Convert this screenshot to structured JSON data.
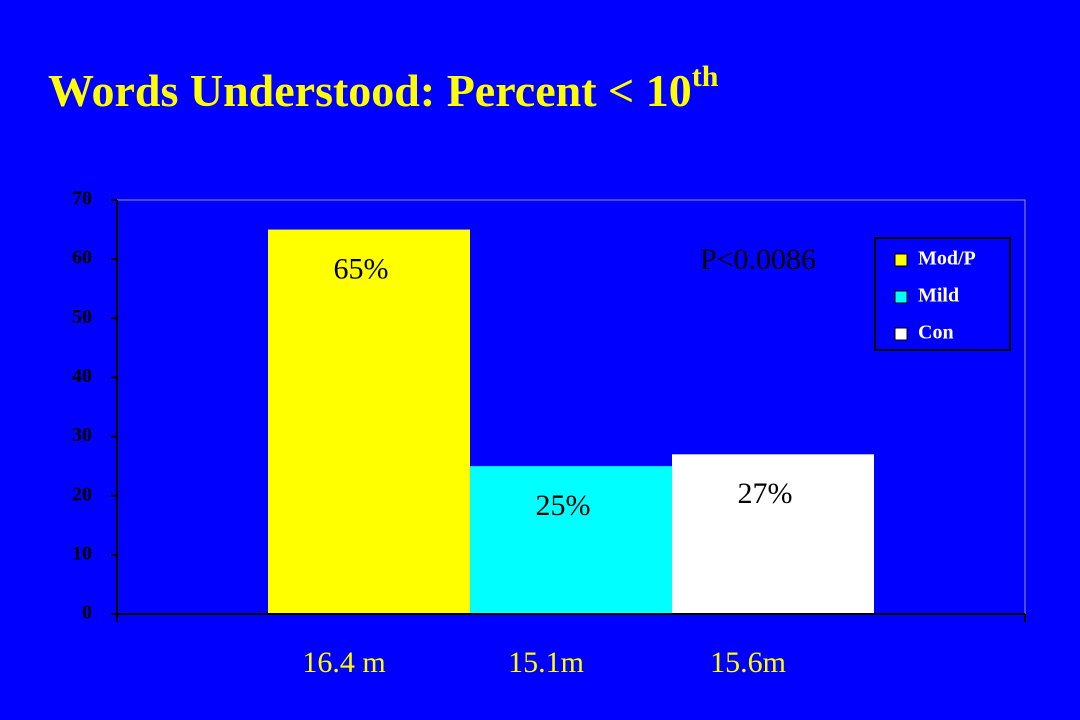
{
  "chart_data": {
    "type": "bar",
    "title": "Words Understood: Percent < 10",
    "title_superscript": "th",
    "annotation": "P<0.0086",
    "series": [
      {
        "name": "Mod/P",
        "color": "#ffff00",
        "values": [
          65
        ],
        "value_labels": [
          "65%"
        ],
        "x_label": "16.4 m"
      },
      {
        "name": "Mild",
        "color": "#00ffff",
        "values": [
          25
        ],
        "value_labels": [
          "25%"
        ],
        "x_label": "15.1m"
      },
      {
        "name": "Con",
        "color": "#ffffff",
        "values": [
          27
        ],
        "value_labels": [
          "27%"
        ],
        "x_label": "15.6m"
      }
    ],
    "ylim": [
      0,
      70
    ],
    "yticks": [
      0,
      10,
      20,
      30,
      40,
      50,
      60,
      70
    ],
    "grid": false,
    "legend": "right"
  }
}
